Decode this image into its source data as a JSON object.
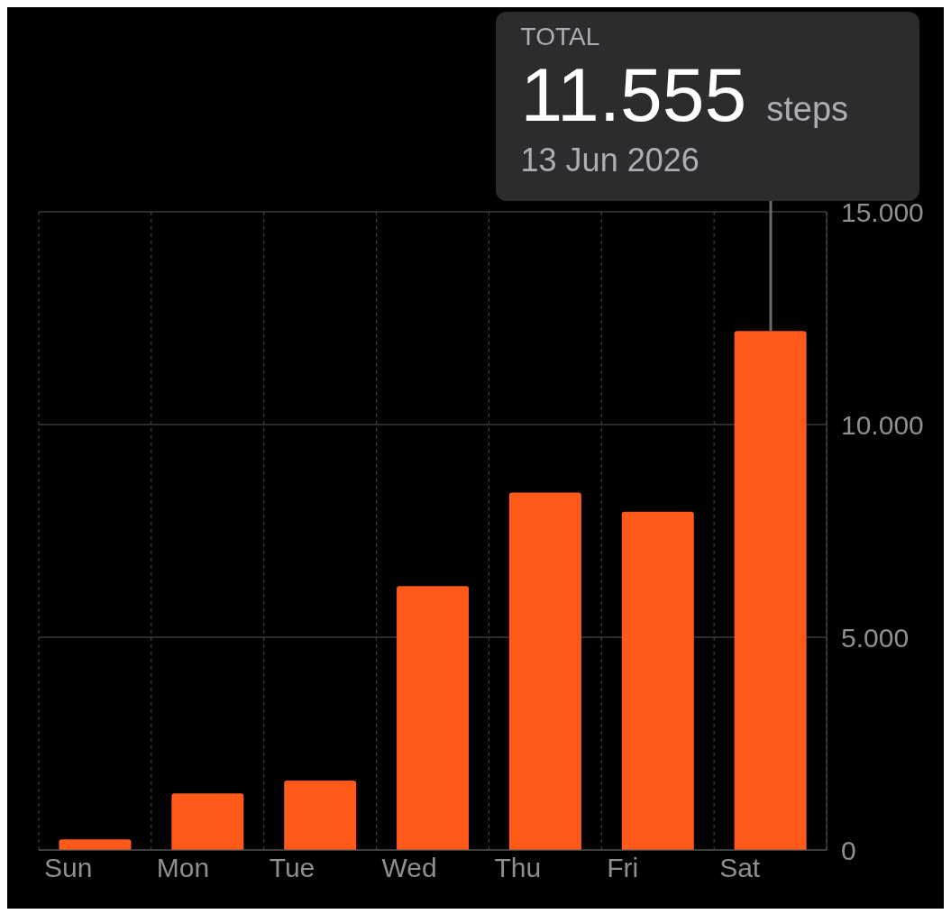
{
  "chart_data": {
    "type": "bar",
    "categories": [
      "Sun",
      "Mon",
      "Tue",
      "Wed",
      "Thu",
      "Fri",
      "Sat"
    ],
    "values": [
      250,
      1330,
      1630,
      6200,
      8400,
      7950,
      12200
    ],
    "color": "#ff5a1a",
    "ylim": [
      0,
      15000
    ],
    "yticks": [
      {
        "value": 0,
        "label": "0"
      },
      {
        "value": 5000,
        "label": "5.000"
      },
      {
        "value": 10000,
        "label": "10.000"
      },
      {
        "value": 15000,
        "label": "15.000"
      }
    ],
    "grid": true,
    "annotations": [
      "TOTAL",
      {
        "text": "11.555",
        "x": "Sat",
        "y": 12200
      },
      "steps",
      "13 Jun 2026"
    ]
  }
}
